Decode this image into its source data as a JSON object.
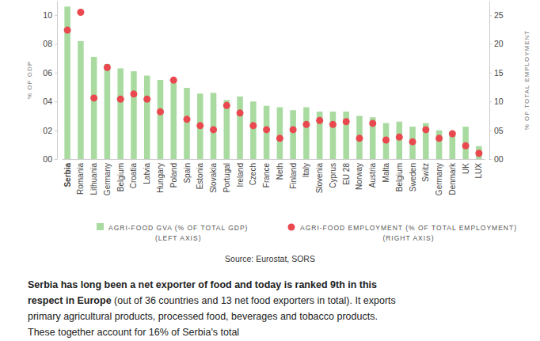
{
  "chart_data": {
    "type": "bar",
    "categories": [
      "Serbia",
      "Romania",
      "Lithuania",
      "Germany",
      "Belgium",
      "Croatia",
      "Latvia",
      "Hungary",
      "Poland",
      "Spain",
      "Estonia",
      "Slovakia",
      "Portugal",
      "Ireland",
      "Czech",
      "France",
      "Neth",
      "Finland",
      "Italy",
      "Slovenia",
      "Cyprus",
      "EU 28",
      "Norway",
      "Austria",
      "Malta",
      "Belgium",
      "Sweden",
      "Switz",
      "Germany",
      "Denmark",
      "UK",
      "LUX"
    ],
    "series": [
      {
        "name": "AGRI-FOOD GVA (% OF TOTAL GDP)",
        "legend_note": "(LEFT AXIS)",
        "type": "bar",
        "color": "#a9dba1",
        "values": [
          10.6,
          8.2,
          7.1,
          6.6,
          6.3,
          6.1,
          5.8,
          5.5,
          5.3,
          4.95,
          4.55,
          4.6,
          4.1,
          4.35,
          4.0,
          3.7,
          3.6,
          3.4,
          3.6,
          3.3,
          3.3,
          3.3,
          3.0,
          2.9,
          2.5,
          2.6,
          2.25,
          2.5,
          2.0,
          1.9,
          2.25,
          0.9
        ]
      },
      {
        "name": "AGRI-FOOD EMPLOYMENT (% OF TOTAL EMPLOYMENT)",
        "legend_note": "(RIGHT AXIS)",
        "type": "scatter",
        "marker": "circle",
        "color": "#e9484f",
        "axis": "y2",
        "values": [
          22.4,
          25.5,
          10.6,
          15.9,
          10.4,
          11.3,
          10.4,
          8.2,
          13.7,
          6.9,
          5.8,
          5.1,
          9.3,
          8.0,
          5.8,
          5.1,
          3.6,
          5.1,
          6.0,
          6.7,
          6.0,
          6.5,
          3.6,
          6.2,
          3.3,
          3.8,
          3.0,
          5.1,
          3.6,
          4.4,
          2.3,
          1.0
        ]
      }
    ],
    "y_label": "% OF GDP",
    "y2_label": "% OF TOTAL EMPLOYMENT",
    "ylim": [
      0,
      11
    ],
    "yticks": [
      {
        "value": 0,
        "label": "00"
      },
      {
        "value": 2,
        "label": "02"
      },
      {
        "value": 4,
        "label": "04"
      },
      {
        "value": 6,
        "label": "06"
      },
      {
        "value": 8,
        "label": "08"
      },
      10
    ],
    "y2lim": [
      0,
      27.5
    ],
    "y2ticks": [
      {
        "value": 0,
        "label": "00"
      },
      {
        "value": 5,
        "label": "05"
      },
      10,
      15,
      20,
      25
    ],
    "grid": false,
    "legend": "bottom",
    "source": "Source: Eurostat, SORS"
  },
  "text": {
    "bold": "Serbia has long been a net exporter of food and today is ranked 9th in this respect in Europe",
    "body": " (out of 36 countries and 13 net food exporters in total). It exports primary agricultural products, processed food, beverages and tobacco products. These together account for 16% of Serbia's total"
  }
}
